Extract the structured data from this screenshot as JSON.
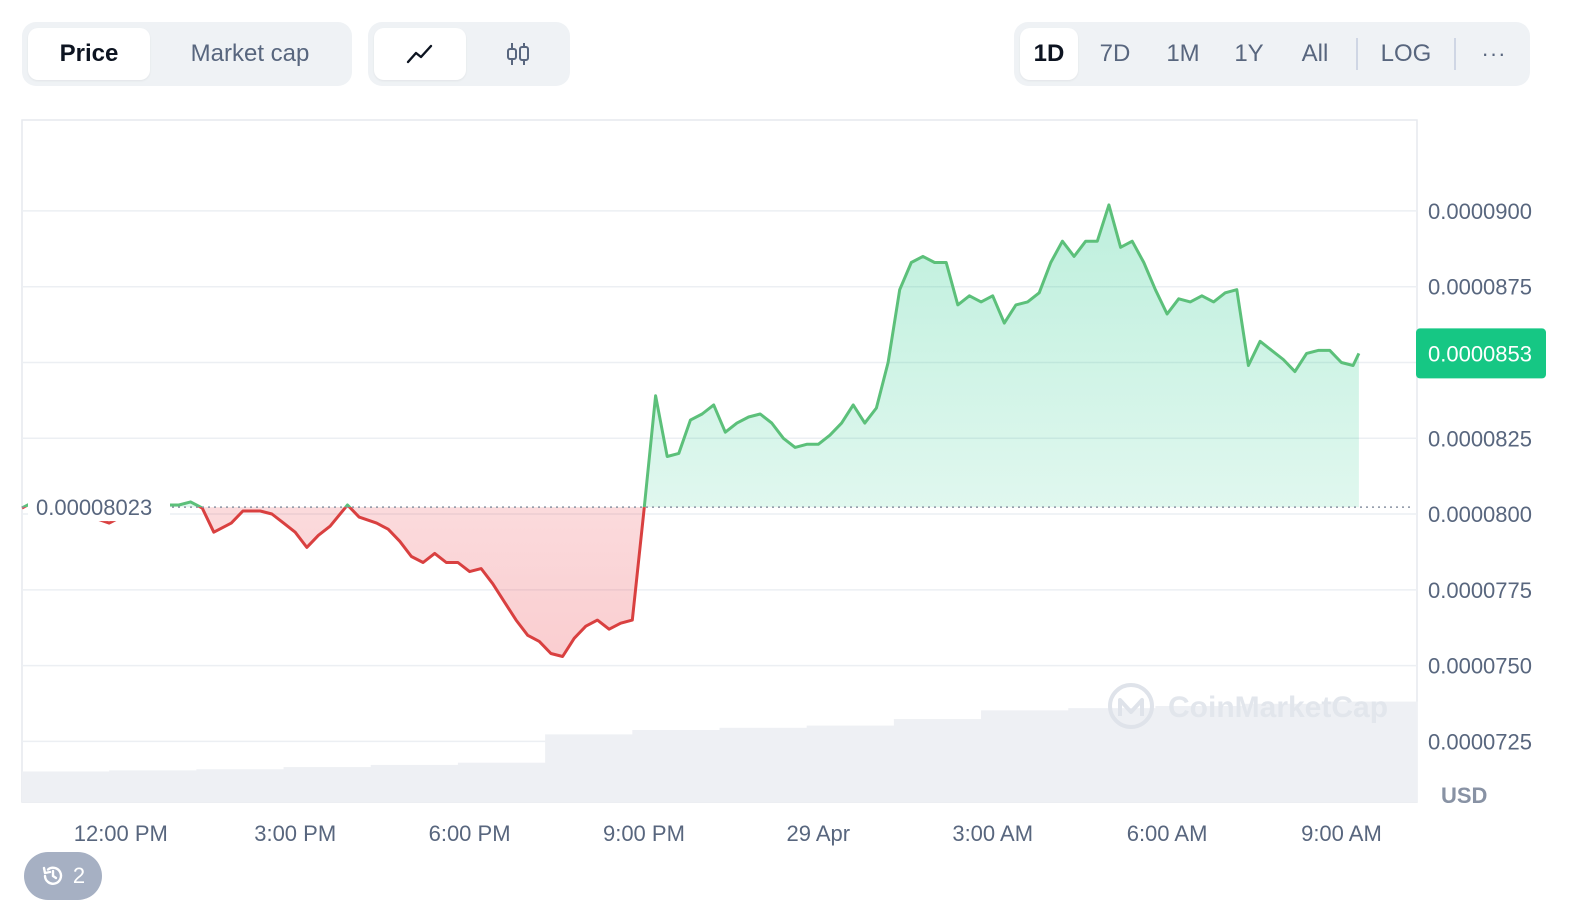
{
  "toolbar": {
    "data_type_tabs": [
      {
        "label": "Price",
        "active": true
      },
      {
        "label": "Market cap",
        "active": false
      }
    ],
    "chart_type_tabs": [
      {
        "icon": "line-chart-icon",
        "active": true
      },
      {
        "icon": "candlestick-icon",
        "active": false
      }
    ],
    "range_tabs": [
      {
        "label": "1D",
        "active": true
      },
      {
        "label": "7D",
        "active": false
      },
      {
        "label": "1M",
        "active": false
      },
      {
        "label": "1Y",
        "active": false
      },
      {
        "label": "All",
        "active": false
      }
    ],
    "log_label": "LOG",
    "more_label": "···"
  },
  "history_badge": {
    "count": "2",
    "icon": "history-icon"
  },
  "watermark": "CoinMarketCap",
  "colors": {
    "up": "#16c784",
    "up_line": "#5cc07a",
    "down_line": "#d94040",
    "down_fill": "#ea3943",
    "grid": "#eceff3",
    "axis_text": "#58667e",
    "volume": "#eef0f4"
  },
  "chart_data": {
    "type": "area",
    "currency_label": "USD",
    "baseline": 8.023e-05,
    "baseline_label": "0.00008023",
    "current_price": 8.53e-05,
    "current_price_label": "0.0000853",
    "ylim": [
      7.05e-05,
      9.3e-05
    ],
    "y_ticks": [
      {
        "value": 9e-05,
        "label": "0.0000900"
      },
      {
        "value": 8.75e-05,
        "label": "0.0000875"
      },
      {
        "value": 8.5e-05,
        "label": ""
      },
      {
        "value": 8.25e-05,
        "label": "0.0000825"
      },
      {
        "value": 8e-05,
        "label": "0.0000800"
      },
      {
        "value": 7.75e-05,
        "label": "0.0000775"
      },
      {
        "value": 7.5e-05,
        "label": "0.0000750"
      },
      {
        "value": 7.25e-05,
        "label": "0.0000725"
      }
    ],
    "xlim": [
      10.3,
      34.3
    ],
    "x_ticks": [
      {
        "value": 12,
        "label": "12:00 PM"
      },
      {
        "value": 15,
        "label": "3:00 PM"
      },
      {
        "value": 18,
        "label": "6:00 PM"
      },
      {
        "value": 21,
        "label": "9:00 PM"
      },
      {
        "value": 24,
        "label": "29 Apr"
      },
      {
        "value": 27,
        "label": "3:00 AM"
      },
      {
        "value": 30,
        "label": "6:00 AM"
      },
      {
        "value": 33,
        "label": "9:00 AM"
      }
    ],
    "x_unit": "hour",
    "series": [
      {
        "values": [
          [
            10.3,
            8.02e-05
          ],
          [
            10.7,
            8.06e-05
          ],
          [
            11.0,
            8.03e-05
          ],
          [
            11.3,
            8.01e-05
          ],
          [
            11.5,
            7.99e-05
          ],
          [
            11.8,
            7.97e-05
          ],
          [
            12.0,
            7.99e-05
          ],
          [
            12.4,
            8.01e-05
          ],
          [
            12.7,
            8.03e-05
          ],
          [
            13.0,
            8.03e-05
          ],
          [
            13.2,
            8.04e-05
          ],
          [
            13.4,
            8.02e-05
          ],
          [
            13.6,
            7.94e-05
          ],
          [
            13.9,
            7.97e-05
          ],
          [
            14.1,
            8.01e-05
          ],
          [
            14.4,
            8.01e-05
          ],
          [
            14.6,
            8e-05
          ],
          [
            14.8,
            7.97e-05
          ],
          [
            15.0,
            7.94e-05
          ],
          [
            15.2,
            7.89e-05
          ],
          [
            15.4,
            7.93e-05
          ],
          [
            15.6,
            7.96e-05
          ],
          [
            15.9,
            8.03e-05
          ],
          [
            16.1,
            7.99e-05
          ],
          [
            16.4,
            7.97e-05
          ],
          [
            16.6,
            7.95e-05
          ],
          [
            16.8,
            7.91e-05
          ],
          [
            17.0,
            7.86e-05
          ],
          [
            17.2,
            7.84e-05
          ],
          [
            17.4,
            7.87e-05
          ],
          [
            17.6,
            7.84e-05
          ],
          [
            17.8,
            7.84e-05
          ],
          [
            18.0,
            7.81e-05
          ],
          [
            18.2,
            7.82e-05
          ],
          [
            18.4,
            7.77e-05
          ],
          [
            18.6,
            7.71e-05
          ],
          [
            18.8,
            7.65e-05
          ],
          [
            19.0,
            7.6e-05
          ],
          [
            19.2,
            7.58e-05
          ],
          [
            19.4,
            7.54e-05
          ],
          [
            19.6,
            7.53e-05
          ],
          [
            19.8,
            7.59e-05
          ],
          [
            20.0,
            7.63e-05
          ],
          [
            20.2,
            7.65e-05
          ],
          [
            20.4,
            7.62e-05
          ],
          [
            20.6,
            7.64e-05
          ],
          [
            20.8,
            7.65e-05
          ],
          [
            21.0,
            8.01e-05
          ],
          [
            21.2,
            8.39e-05
          ],
          [
            21.4,
            8.19e-05
          ],
          [
            21.6,
            8.2e-05
          ],
          [
            21.8,
            8.31e-05
          ],
          [
            22.0,
            8.33e-05
          ],
          [
            22.2,
            8.36e-05
          ],
          [
            22.4,
            8.27e-05
          ],
          [
            22.6,
            8.3e-05
          ],
          [
            22.8,
            8.32e-05
          ],
          [
            23.0,
            8.33e-05
          ],
          [
            23.2,
            8.3e-05
          ],
          [
            23.4,
            8.25e-05
          ],
          [
            23.6,
            8.22e-05
          ],
          [
            23.8,
            8.23e-05
          ],
          [
            24.0,
            8.23e-05
          ],
          [
            24.2,
            8.26e-05
          ],
          [
            24.4,
            8.3e-05
          ],
          [
            24.6,
            8.36e-05
          ],
          [
            24.8,
            8.3e-05
          ],
          [
            25.0,
            8.35e-05
          ],
          [
            25.2,
            8.5e-05
          ],
          [
            25.4,
            8.74e-05
          ],
          [
            25.6,
            8.83e-05
          ],
          [
            25.8,
            8.85e-05
          ],
          [
            26.0,
            8.83e-05
          ],
          [
            26.2,
            8.83e-05
          ],
          [
            26.4,
            8.69e-05
          ],
          [
            26.6,
            8.72e-05
          ],
          [
            26.8,
            8.7e-05
          ],
          [
            27.0,
            8.72e-05
          ],
          [
            27.2,
            8.63e-05
          ],
          [
            27.4,
            8.69e-05
          ],
          [
            27.6,
            8.7e-05
          ],
          [
            27.8,
            8.73e-05
          ],
          [
            28.0,
            8.83e-05
          ],
          [
            28.2,
            8.9e-05
          ],
          [
            28.4,
            8.85e-05
          ],
          [
            28.6,
            8.9e-05
          ],
          [
            28.8,
            8.9e-05
          ],
          [
            29.0,
            9.02e-05
          ],
          [
            29.2,
            8.88e-05
          ],
          [
            29.4,
            8.9e-05
          ],
          [
            29.6,
            8.83e-05
          ],
          [
            29.8,
            8.74e-05
          ],
          [
            30.0,
            8.66e-05
          ],
          [
            30.2,
            8.71e-05
          ],
          [
            30.4,
            8.7e-05
          ],
          [
            30.6,
            8.72e-05
          ],
          [
            30.8,
            8.7e-05
          ],
          [
            31.0,
            8.73e-05
          ],
          [
            31.2,
            8.74e-05
          ],
          [
            31.4,
            8.49e-05
          ],
          [
            31.6,
            8.57e-05
          ],
          [
            31.8,
            8.54e-05
          ],
          [
            32.0,
            8.51e-05
          ],
          [
            32.2,
            8.47e-05
          ],
          [
            32.4,
            8.53e-05
          ],
          [
            32.6,
            8.54e-05
          ],
          [
            32.8,
            8.54e-05
          ],
          [
            33.0,
            8.5e-05
          ],
          [
            33.2,
            8.49e-05
          ],
          [
            33.3,
            8.53e-05
          ]
        ]
      }
    ],
    "volume": [
      0.14,
      0.145,
      0.15,
      0.16,
      0.17,
      0.18,
      0.31,
      0.33,
      0.34,
      0.35,
      0.38,
      0.42,
      0.43,
      0.44,
      0.45,
      0.46
    ]
  }
}
